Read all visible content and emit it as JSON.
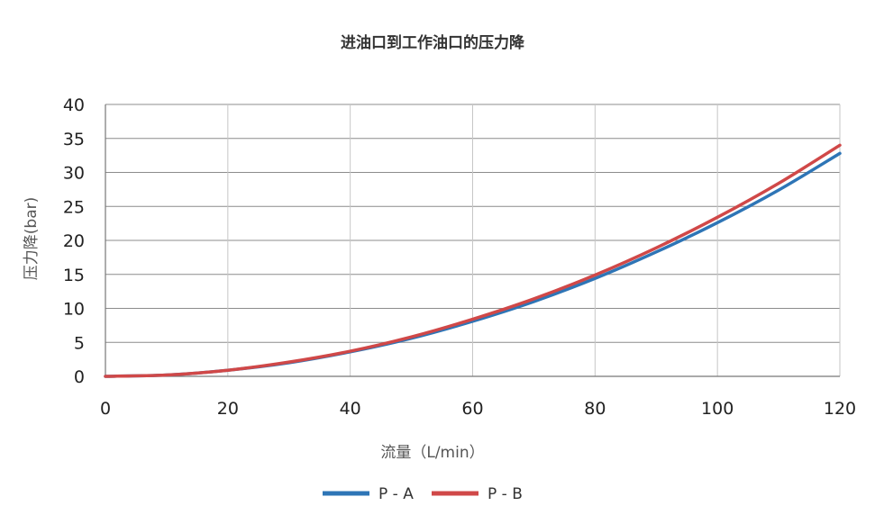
{
  "chart_data": {
    "type": "line",
    "title": "进油口到工作油口的压力降",
    "xlabel": "流量（L/min）",
    "ylabel": "压力降(bar)",
    "xlim": [
      0,
      120
    ],
    "ylim": [
      0,
      40
    ],
    "x_ticks": [
      0,
      20,
      40,
      60,
      80,
      100,
      120
    ],
    "y_ticks": [
      0,
      5,
      10,
      15,
      20,
      25,
      30,
      35,
      40
    ],
    "grid": true,
    "legend_position": "bottom",
    "x": [
      0,
      10,
      20,
      30,
      40,
      50,
      60,
      70,
      80,
      90,
      100,
      110,
      120
    ],
    "series": [
      {
        "name": "P - A",
        "color": "#2e75b6",
        "values": [
          0,
          0.2,
          0.9,
          2.0,
          3.6,
          5.6,
          8.1,
          11.0,
          14.4,
          18.3,
          22.6,
          27.4,
          32.8
        ]
      },
      {
        "name": "P - B",
        "color": "#d04848",
        "values": [
          0,
          0.2,
          0.9,
          2.1,
          3.7,
          5.8,
          8.4,
          11.4,
          14.9,
          18.9,
          23.4,
          28.4,
          34.0
        ]
      }
    ]
  }
}
